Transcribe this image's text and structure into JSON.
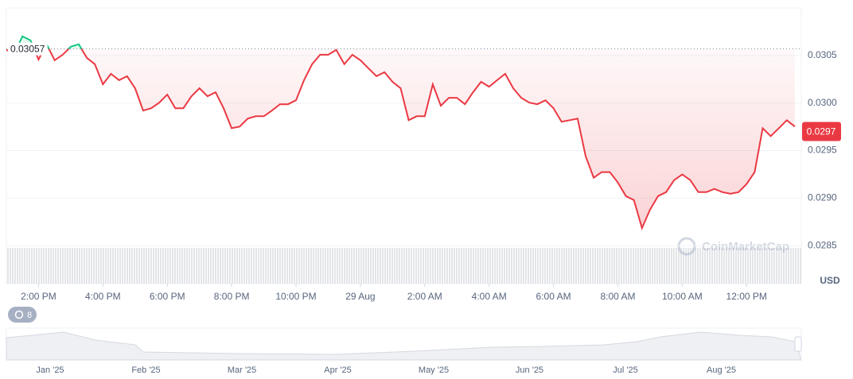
{
  "chart_data": {
    "type": "line",
    "x": [
      13,
      13.25,
      13.5,
      13.75,
      14,
      14.25,
      14.5,
      14.75,
      15,
      15.25,
      15.5,
      15.75,
      16,
      16.25,
      16.5,
      16.75,
      17,
      17.25,
      17.5,
      17.75,
      18,
      18.25,
      18.5,
      18.75,
      19,
      19.25,
      19.5,
      19.75,
      20,
      20.25,
      20.5,
      20.75,
      21,
      21.25,
      21.5,
      21.75,
      22,
      22.25,
      22.5,
      22.75,
      23,
      23.25,
      23.5,
      23.75,
      24,
      24.25,
      24.5,
      24.75,
      25,
      25.25,
      25.5,
      25.75,
      26,
      26.25,
      26.5,
      26.75,
      27,
      27.25,
      27.5,
      27.75,
      28,
      28.25,
      28.5,
      28.75,
      29,
      29.25,
      29.5,
      29.75,
      30,
      30.25,
      30.5,
      30.75,
      31,
      31.25,
      31.5,
      31.75,
      32,
      32.25,
      32.5,
      32.75,
      33,
      33.25,
      33.5,
      33.75,
      34,
      34.25,
      34.5,
      34.75,
      35,
      35.25,
      35.5,
      35.75,
      36,
      36.25,
      36.5,
      36.75,
      37,
      37.25,
      37.5
    ],
    "series": [
      {
        "name": "Price",
        "color": "#ea3943",
        "color_up": "#16c784",
        "values": [
          0.030559,
          0.030525,
          0.030702,
          0.03066,
          0.030458,
          0.030618,
          0.03045,
          0.030508,
          0.030592,
          0.030618,
          0.030475,
          0.030408,
          0.030197,
          0.030307,
          0.03024,
          0.030282,
          0.030155,
          0.02992,
          0.029945,
          0.030004,
          0.030088,
          0.029945,
          0.029945,
          0.030071,
          0.030155,
          0.030071,
          0.030113,
          0.029945,
          0.029735,
          0.029752,
          0.029836,
          0.029861,
          0.029861,
          0.02992,
          0.029987,
          0.029987,
          0.030029,
          0.03024,
          0.030408,
          0.030508,
          0.030508,
          0.030559,
          0.030408,
          0.030508,
          0.03045,
          0.030366,
          0.030282,
          0.030324,
          0.030223,
          0.030155,
          0.029819,
          0.029861,
          0.029861,
          0.030197,
          0.029971,
          0.030055,
          0.030055,
          0.029987,
          0.030113,
          0.030223,
          0.030172,
          0.03024,
          0.030307,
          0.030155,
          0.030055,
          0.030004,
          0.029987,
          0.030029,
          0.029945,
          0.029803,
          0.029819,
          0.029836,
          0.029441,
          0.029214,
          0.029273,
          0.029273,
          0.029164,
          0.029021,
          0.028979,
          0.028685,
          0.028878,
          0.029021,
          0.029063,
          0.029189,
          0.029248,
          0.029189,
          0.029063,
          0.029063,
          0.029097,
          0.029063,
          0.029046,
          0.029063,
          0.029147,
          0.029273,
          0.029735,
          0.029651,
          0.029735,
          0.029819,
          0.029752
        ]
      }
    ],
    "reference_price": 0.03057,
    "current_price": 0.0297,
    "xlim": [
      13,
      37.7
    ],
    "ylim": [
      0.0281,
      0.031
    ],
    "xticks": [
      {
        "value": 14,
        "label": "2:00 PM"
      },
      {
        "value": 16,
        "label": "4:00 PM"
      },
      {
        "value": 18,
        "label": "6:00 PM"
      },
      {
        "value": 20,
        "label": "8:00 PM"
      },
      {
        "value": 22,
        "label": "10:00 PM"
      },
      {
        "value": 24,
        "label": "29 Aug"
      },
      {
        "value": 26,
        "label": "2:00 AM"
      },
      {
        "value": 28,
        "label": "4:00 AM"
      },
      {
        "value": 30,
        "label": "6:00 AM"
      },
      {
        "value": 32,
        "label": "8:00 AM"
      },
      {
        "value": 34,
        "label": "10:00 AM"
      },
      {
        "value": 36,
        "label": "12:00 PM"
      }
    ],
    "yticks": [
      0.0285,
      {
        "value": 0.029,
        "label": "0.0290"
      },
      0.0295,
      {
        "value": 0.03,
        "label": "0.0300"
      },
      0.0305
    ],
    "y_unit": "USD",
    "watermark": "CoinMarketCap",
    "indicator_count": "8",
    "navigator_labels": [
      "Jan '25",
      "Feb '25",
      "Mar '25",
      "Apr '25",
      "May '25",
      "Jun '25",
      "Jul '25",
      "Aug '25"
    ],
    "grid": true
  }
}
